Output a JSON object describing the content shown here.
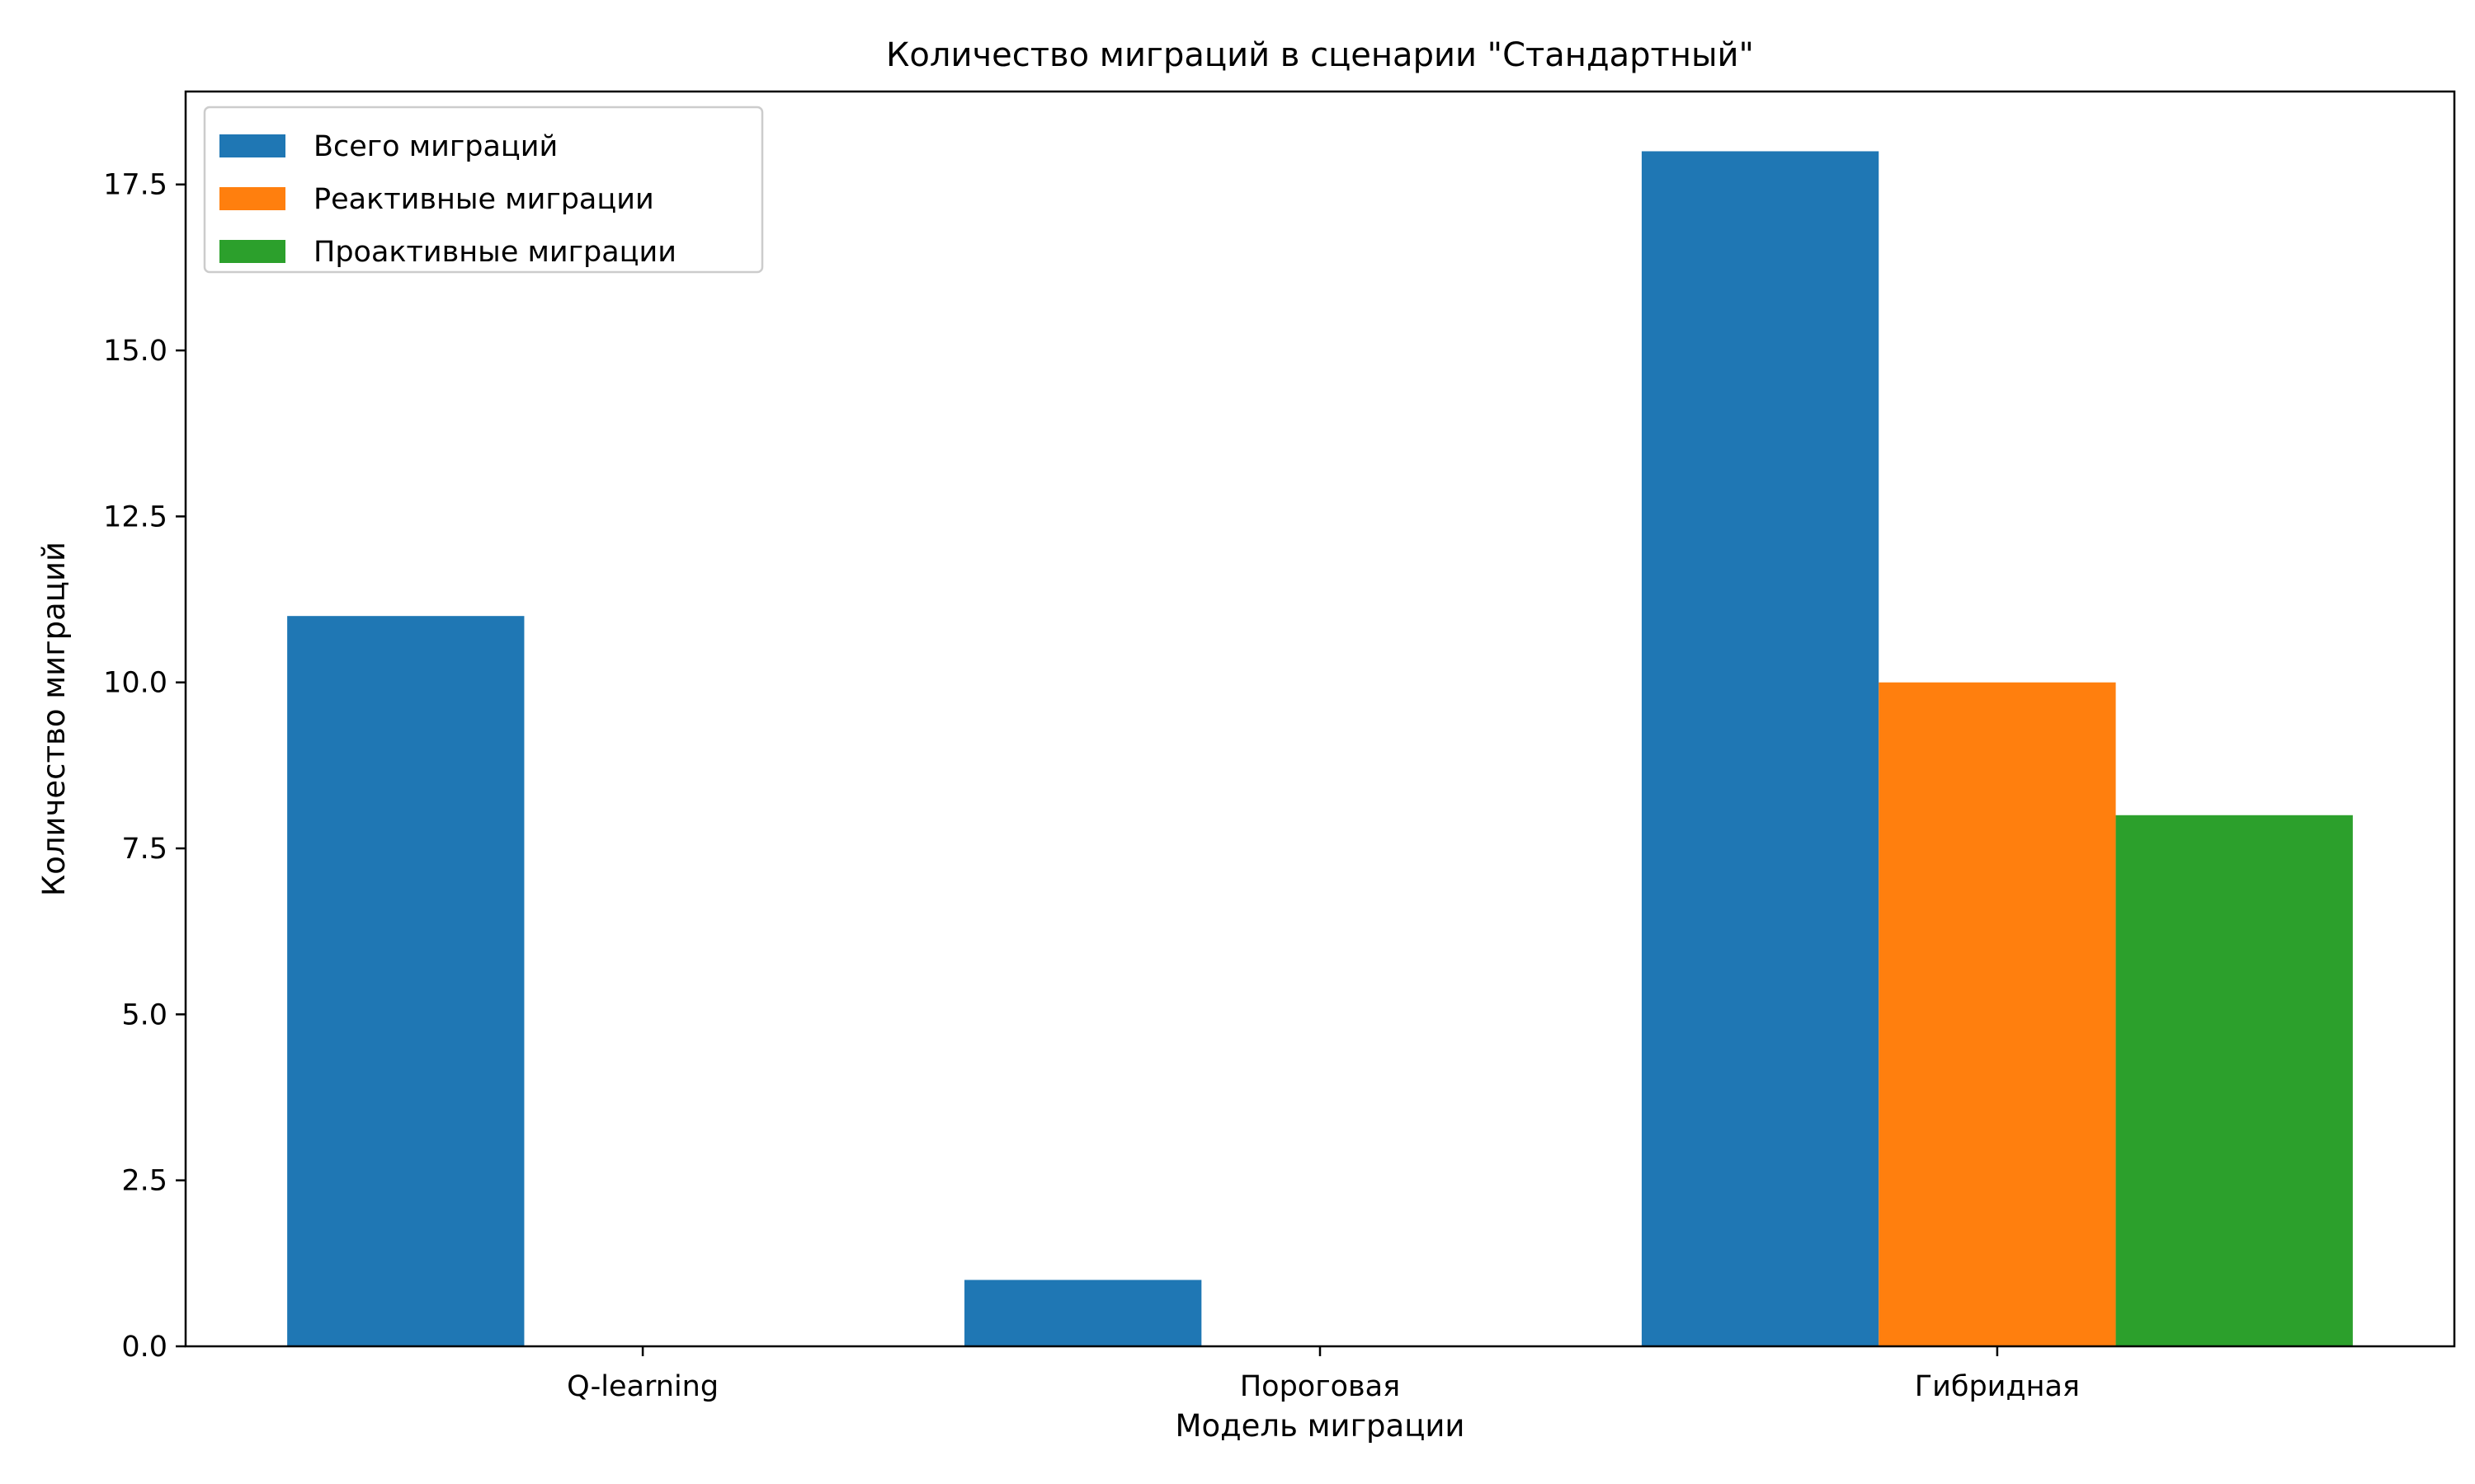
{
  "chart_data": {
    "type": "bar",
    "title": "Количество миграций в сценарии \"Стандартный\"",
    "xlabel": "Модель миграции",
    "ylabel": "Количество миграций",
    "categories": [
      "Q-learning",
      "Пороговая",
      "Гибридная"
    ],
    "series": [
      {
        "name": "Всего миграций",
        "color": "#1f77b4",
        "values": [
          11,
          1,
          18
        ]
      },
      {
        "name": "Реактивные миграции",
        "color": "#ff7f0e",
        "values": [
          0,
          0,
          10
        ]
      },
      {
        "name": "Проактивные миграции",
        "color": "#2ca02c",
        "values": [
          0,
          0,
          8
        ]
      }
    ],
    "ylim": [
      0,
      18.9
    ],
    "yticks": [
      0,
      2.5,
      5,
      7.5,
      10,
      12.5,
      15,
      17.5
    ],
    "ytick_labels": [
      "0.0",
      "2.5",
      "5.0",
      "7.5",
      "10.0",
      "12.5",
      "15.0",
      "17.5"
    ],
    "grid": false,
    "legend_position": "upper left"
  }
}
